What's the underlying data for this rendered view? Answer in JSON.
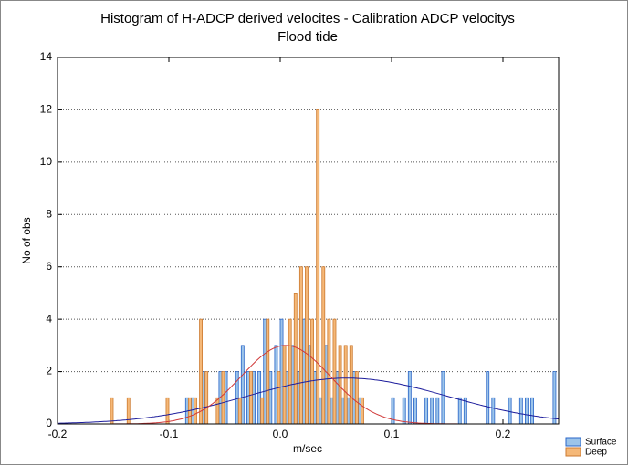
{
  "chart_data": {
    "type": "histogram",
    "title": "Histogram of H-ADCP derived velocites - Calibration ADCP velocitys",
    "subtitle": "Flood tide",
    "x_label": "m/sec",
    "y_label": "No of obs",
    "bins": [
      -0.2,
      -0.195,
      -0.19,
      -0.185,
      -0.18,
      -0.175,
      -0.17,
      -0.165,
      -0.16,
      -0.155,
      -0.15,
      -0.145,
      -0.14,
      -0.135,
      -0.13,
      -0.125,
      -0.12,
      -0.115,
      -0.11,
      -0.105,
      -0.1,
      -0.095,
      -0.09,
      -0.085,
      -0.08,
      -0.075,
      -0.07,
      -0.065,
      -0.06,
      -0.055,
      -0.05,
      -0.045,
      -0.04,
      -0.035,
      -0.03,
      -0.025,
      -0.02,
      -0.015,
      -0.01,
      -0.005,
      0,
      0.005,
      0.01,
      0.015,
      0.02,
      0.025,
      0.03,
      0.035,
      0.04,
      0.045,
      0.05,
      0.055,
      0.06,
      0.065,
      0.07,
      0.075,
      0.08,
      0.085,
      0.09,
      0.095,
      0.1,
      0.105,
      0.11,
      0.115,
      0.12,
      0.125,
      0.13,
      0.135,
      0.14,
      0.145,
      0.15,
      0.155,
      0.16,
      0.165,
      0.17,
      0.175,
      0.18,
      0.185,
      0.19,
      0.195,
      0.2,
      0.205,
      0.21,
      0.215,
      0.22,
      0.225,
      0.23,
      0.235,
      0.24,
      0.245,
      0.25
    ],
    "series": [
      {
        "name": "Surface",
        "color": "#9cc4ea",
        "edge": "#2a66c8",
        "fit_color": "#1c1c9c",
        "fit": {
          "mean": 0.06,
          "sd": 0.09,
          "peak": 1.75
        },
        "values": [
          0,
          0,
          0,
          0,
          0,
          0,
          0,
          0,
          0,
          0,
          0,
          0,
          0,
          0,
          0,
          0,
          0,
          0,
          0,
          0,
          0,
          0,
          0,
          1,
          1,
          0,
          2,
          0,
          0,
          2,
          2,
          0,
          2,
          3,
          2,
          2,
          2,
          4,
          2,
          3,
          4,
          2,
          3,
          2,
          4,
          3,
          2,
          1,
          3,
          1,
          2,
          1,
          1,
          2,
          1,
          0,
          0,
          0,
          0,
          0,
          1,
          0,
          1,
          2,
          1,
          0,
          1,
          1,
          1,
          2,
          0,
          0,
          1,
          1,
          0,
          0,
          0,
          2,
          1,
          0,
          0,
          1,
          0,
          1,
          1,
          1,
          0,
          0,
          0,
          2
        ]
      },
      {
        "name": "Deep",
        "color": "#f5b878",
        "edge": "#cc7a30",
        "fit_color": "#d03838",
        "fit": {
          "mean": 0.005,
          "sd": 0.04,
          "peak": 3
        },
        "values": [
          0,
          0,
          0,
          0,
          0,
          0,
          0,
          0,
          0,
          1,
          0,
          0,
          1,
          0,
          0,
          0,
          0,
          0,
          0,
          1,
          0,
          0,
          0,
          1,
          1,
          4,
          2,
          0,
          1,
          2,
          0,
          0,
          1,
          0,
          2,
          0,
          1,
          4,
          0,
          2,
          3,
          4,
          5,
          6,
          6,
          4,
          12,
          6,
          4,
          4,
          3,
          3,
          3,
          2,
          1,
          0,
          0,
          0,
          0,
          0,
          0,
          0,
          0,
          0,
          0,
          0,
          0,
          0,
          0,
          0,
          0,
          0,
          0,
          0,
          0,
          0,
          0,
          0,
          0,
          0,
          0,
          0,
          0,
          0,
          0,
          0,
          0,
          0,
          0,
          0
        ]
      }
    ],
    "xlim": [
      -0.2,
      0.25
    ],
    "xticks": [
      -0.2,
      -0.1,
      {
        "value": 0,
        "label": "0.0"
      },
      0.1,
      0.2
    ],
    "ylim": [
      0,
      14
    ],
    "yticks": [
      0,
      2,
      4,
      6,
      8,
      10,
      12,
      14
    ],
    "grid": true,
    "legend": "bottom-right"
  }
}
